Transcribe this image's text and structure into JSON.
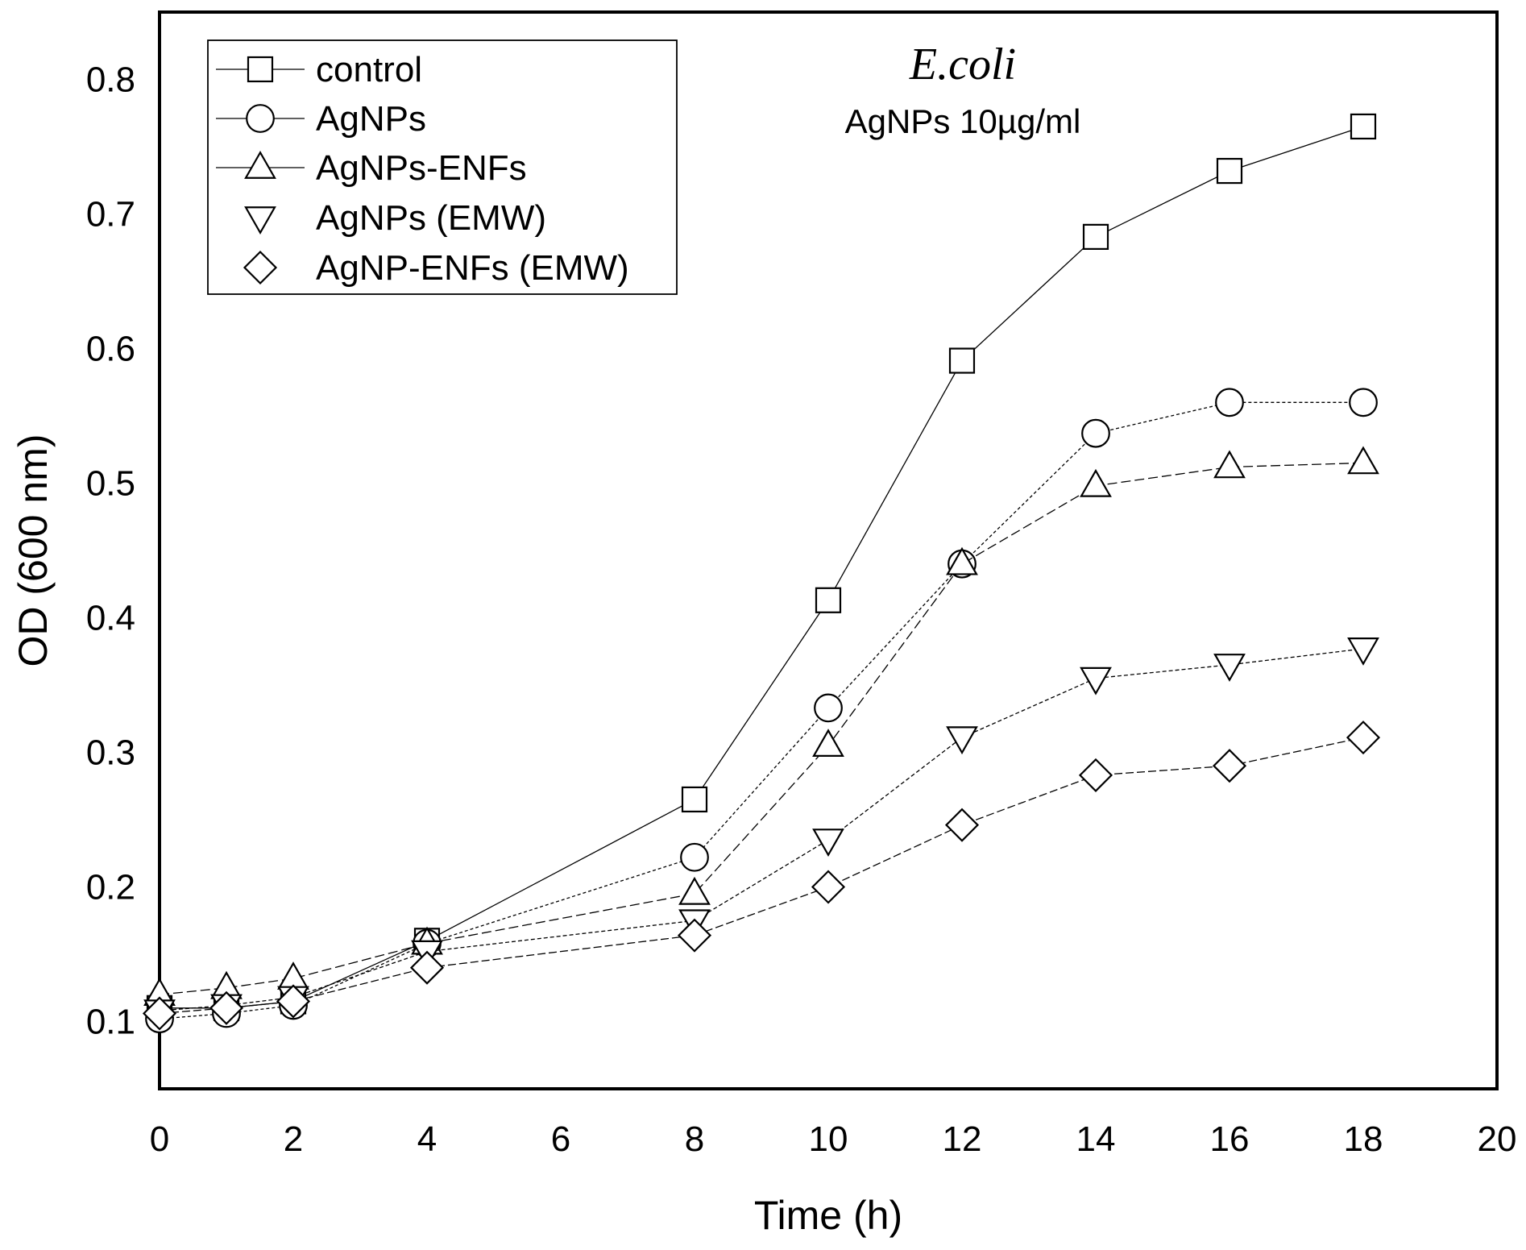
{
  "chart_data": {
    "type": "line",
    "title": "E.coli",
    "subtitle": "AgNPs 10µg/ml",
    "xlabel": "Time (h)",
    "ylabel": "OD (600 nm)",
    "xlim": [
      0,
      20
    ],
    "ylim": [
      0.05,
      0.85
    ],
    "xticks": [
      0,
      2,
      4,
      6,
      8,
      10,
      12,
      14,
      16,
      18,
      20
    ],
    "yticks": [
      0.1,
      0.2,
      0.3,
      0.4,
      0.5,
      0.6,
      0.7,
      0.8
    ],
    "xtick_labels": [
      "0",
      "2",
      "4",
      "6",
      "8",
      "10",
      "12",
      "14",
      "16",
      "18",
      "20"
    ],
    "ytick_labels": [
      "0.1",
      "0.2",
      "0.3",
      "0.4",
      "0.5",
      "0.6",
      "0.7",
      "0.8"
    ],
    "grid": false,
    "legend_position": "top-left",
    "x": [
      0,
      1,
      2,
      4,
      8,
      10,
      12,
      14,
      16,
      18
    ],
    "series": [
      {
        "name": "control",
        "marker": "square",
        "dash": "solid",
        "values": [
          0.11,
          0.11,
          0.115,
          0.16,
          0.265,
          0.413,
          0.591,
          0.683,
          0.732,
          0.765
        ]
      },
      {
        "name": "AgNPs",
        "marker": "circle",
        "dash": "4,3",
        "values": [
          0.102,
          0.106,
          0.112,
          0.158,
          0.222,
          0.333,
          0.44,
          0.537,
          0.56,
          0.56
        ]
      },
      {
        "name": "AgNPs-ENFs",
        "marker": "triangle-up",
        "dash": "12,5",
        "values": [
          0.12,
          0.125,
          0.132,
          0.158,
          0.195,
          0.305,
          0.44,
          0.498,
          0.512,
          0.515
        ]
      },
      {
        "name": "AgNPs (EMW)",
        "marker": "triangle-down",
        "dash": "5,3",
        "values": [
          0.108,
          0.112,
          0.118,
          0.152,
          0.175,
          0.235,
          0.311,
          0.355,
          0.365,
          0.377
        ]
      },
      {
        "name": "AgNP-ENFs (EMW)",
        "marker": "diamond",
        "dash": "10,4",
        "values": [
          0.106,
          0.11,
          0.115,
          0.14,
          0.164,
          0.2,
          0.246,
          0.283,
          0.29,
          0.311
        ]
      }
    ]
  }
}
